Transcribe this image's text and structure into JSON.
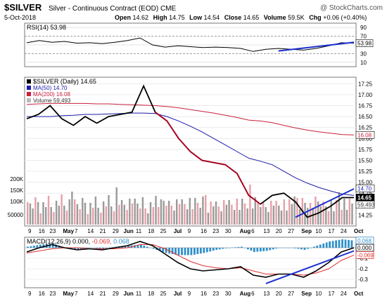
{
  "header": {
    "symbol": "$SILVER",
    "description": "Silver - Continuous Contract (EOD)",
    "exchange": "CME",
    "watermark": "@ StockCharts.com",
    "date": "5-Oct-2018",
    "open_label": "Open",
    "open": "14.62",
    "high_label": "High",
    "high": "14.75",
    "low_label": "Low",
    "low": "14.54",
    "close_label": "Close",
    "close": "14.65",
    "volume_label": "Volume",
    "volume": "59.5K",
    "chg_label": "Chg",
    "chg": "+0.06 (+0.40%)"
  },
  "colors": {
    "price": "#000000",
    "price_down": "#b00020",
    "ma50": "#1a1aa8",
    "ma200": "#c8203c",
    "volume_up": "#9a9a9a",
    "volume_down": "#e8a0a8",
    "macd": "#000000",
    "signal": "#e03030",
    "histogram": "#2f8fc8",
    "trendline": "#1a2fd0"
  },
  "chart_data": [
    {
      "type": "line",
      "title": "RSI(14) 53.98",
      "series": [
        {
          "name": "RSI(14)",
          "last": 53.98
        }
      ],
      "x": [
        "Apr 9",
        "Apr 16",
        "Apr 23",
        "Apr 30",
        "May 7",
        "May 14",
        "May 21",
        "May 29",
        "Jun 4",
        "Jun 11",
        "Jun 18",
        "Jun 25",
        "Jul 2",
        "Jul 9",
        "Jul 16",
        "Jul 23",
        "Jul 30",
        "Aug 6",
        "Aug 13",
        "Aug 20",
        "Aug 27",
        "Sep 4",
        "Sep 10",
        "Sep 17",
        "Sep 24",
        "Oct 1",
        "Oct 5"
      ],
      "values": [
        55,
        60,
        56,
        58,
        54,
        55,
        53,
        56,
        60,
        66,
        50,
        45,
        48,
        46,
        44,
        45,
        44,
        42,
        35,
        40,
        42,
        40,
        38,
        42,
        48,
        55,
        54
      ],
      "ylim": [
        0,
        100
      ],
      "yticks": [
        10,
        30,
        50,
        70,
        90
      ],
      "reference_lines": [
        30,
        70
      ]
    },
    {
      "type": "line",
      "title": "$SILVER (Daily) 14.65",
      "x": [
        "Apr 9",
        "Apr 16",
        "Apr 23",
        "Apr 30",
        "May 7",
        "May 14",
        "May 21",
        "May 29",
        "Jun 4",
        "Jun 11",
        "Jun 15",
        "Jun 18",
        "Jun 25",
        "Jul 2",
        "Jul 9",
        "Jul 16",
        "Jul 23",
        "Jul 30",
        "Aug 6",
        "Aug 13",
        "Aug 15",
        "Aug 20",
        "Aug 27",
        "Sep 4",
        "Sep 10",
        "Sep 17",
        "Sep 24",
        "Oct 1",
        "Oct 5"
      ],
      "series": [
        {
          "name": "$SILVER (Daily) 14.65",
          "values": [
            16.45,
            16.55,
            16.75,
            16.45,
            16.3,
            16.5,
            16.35,
            16.5,
            16.55,
            16.6,
            17.2,
            16.6,
            16.4,
            16.0,
            15.7,
            15.5,
            15.45,
            15.4,
            15.2,
            14.7,
            14.5,
            14.7,
            14.75,
            14.55,
            14.2,
            14.3,
            14.45,
            14.65,
            14.65
          ]
        },
        {
          "name": "MA(50) 14.70",
          "values": [
            16.5,
            16.5,
            16.5,
            16.52,
            16.53,
            16.55,
            16.55,
            16.56,
            16.57,
            16.58,
            16.58,
            16.57,
            16.5,
            16.4,
            16.28,
            16.15,
            16.0,
            15.85,
            15.7,
            15.55,
            15.48,
            15.4,
            15.25,
            15.1,
            14.98,
            14.88,
            14.8,
            14.73,
            14.7
          ]
        },
        {
          "name": "MA(200) 16.08",
          "values": [
            16.78,
            16.79,
            16.8,
            16.8,
            16.8,
            16.8,
            16.79,
            16.79,
            16.78,
            16.77,
            16.76,
            16.75,
            16.73,
            16.7,
            16.66,
            16.62,
            16.58,
            16.53,
            16.48,
            16.42,
            16.4,
            16.36,
            16.3,
            16.24,
            16.19,
            16.15,
            16.12,
            16.09,
            16.08
          ]
        }
      ],
      "volume": {
        "name": "Volume 59,493",
        "last": 59493,
        "yticks": [
          "50000",
          "100K",
          "150K",
          "200K"
        ]
      },
      "ylim": [
        14.0,
        17.4
      ],
      "yticks": [
        14.25,
        14.5,
        14.75,
        15.0,
        15.25,
        15.5,
        15.75,
        16.0,
        16.25,
        16.5,
        16.75,
        17.0,
        17.25
      ],
      "last_labels": [
        "14.65",
        "14.70",
        "16.08",
        "59,493"
      ]
    },
    {
      "type": "line",
      "title": "MACD(12,26,9) 0.000, -0.069, 0.068",
      "x": [
        "Apr 9",
        "Apr 16",
        "Apr 23",
        "Apr 30",
        "May 7",
        "May 14",
        "May 21",
        "May 29",
        "Jun 4",
        "Jun 11",
        "Jun 18",
        "Jun 25",
        "Jul 2",
        "Jul 9",
        "Jul 16",
        "Jul 23",
        "Jul 30",
        "Aug 6",
        "Aug 13",
        "Aug 20",
        "Aug 27",
        "Sep 4",
        "Sep 10",
        "Sep 17",
        "Sep 24",
        "Oct 1",
        "Oct 5"
      ],
      "series": [
        {
          "name": "MACD(12,26,9)",
          "values": [
            -0.04,
            0.0,
            0.03,
            0.0,
            -0.02,
            -0.01,
            -0.02,
            0.0,
            0.02,
            0.06,
            0.02,
            -0.06,
            -0.14,
            -0.2,
            -0.22,
            -0.21,
            -0.2,
            -0.18,
            -0.26,
            -0.28,
            -0.25,
            -0.25,
            -0.28,
            -0.22,
            -0.14,
            -0.04,
            0.0
          ]
        },
        {
          "name": "Signal",
          "values": [
            -0.05,
            -0.03,
            -0.01,
            0.0,
            0.0,
            -0.01,
            -0.01,
            -0.01,
            0.0,
            0.03,
            0.03,
            -0.01,
            -0.07,
            -0.13,
            -0.17,
            -0.19,
            -0.2,
            -0.19,
            -0.22,
            -0.25,
            -0.25,
            -0.25,
            -0.26,
            -0.24,
            -0.2,
            -0.12,
            -0.069
          ]
        },
        {
          "name": "Histogram",
          "values": [
            0.01,
            0.03,
            0.04,
            0.0,
            -0.02,
            0.0,
            -0.01,
            0.01,
            0.02,
            0.03,
            -0.01,
            -0.05,
            -0.07,
            -0.07,
            -0.05,
            -0.02,
            0.0,
            0.01,
            -0.04,
            -0.03,
            0.0,
            0.0,
            -0.02,
            0.02,
            0.06,
            0.08,
            0.068
          ]
        }
      ],
      "ylim": [
        -0.38,
        0.1
      ],
      "yticks": [
        -0.3,
        -0.2,
        -0.1
      ],
      "last_labels": [
        "0.068",
        "0.000",
        "-0.069"
      ]
    }
  ],
  "rsi_panel": {
    "title": "RSI(14) 53.98",
    "axis_labels": [
      "90",
      "70",
      "50",
      "30",
      "10"
    ],
    "last_label": "53.98"
  },
  "price_panel": {
    "legend_title": "$SILVER (Daily) 14.65",
    "legend_ma50": "MA(50) 14.70",
    "legend_ma200": "MA(200) 16.08",
    "legend_volume": "Volume 59,493",
    "axis_labels": [
      "17.25",
      "17.00",
      "16.75",
      "16.50",
      "16.25",
      "16.00",
      "15.75",
      "15.50",
      "15.25",
      "15.00",
      "14.75",
      "14.50",
      "14.25"
    ],
    "volume_axis_labels": [
      "200K",
      "150K",
      "100K",
      "50000"
    ],
    "last_price": "14.65",
    "last_ma50": "14.70",
    "last_ma200": "16.08",
    "last_volume": "59,493"
  },
  "macd_panel": {
    "title_prefix": "MACD(12,26,9)",
    "title_macd": "0.000,",
    "title_signal": "-0.069,",
    "title_hist": "0.068",
    "axis_labels": [
      "-0.1",
      "-0.2",
      "-0.3"
    ],
    "last_hist": "0.068",
    "last_macd": "0.000",
    "last_signal": "-0.069"
  },
  "x_axis": {
    "labels": [
      "9",
      "16",
      "23",
      "May",
      "7",
      "14",
      "21",
      "29",
      "Jun",
      "11",
      "18",
      "25",
      "Jul",
      "9",
      "16",
      "23",
      "30",
      "Aug",
      "6",
      "13",
      "20",
      "27",
      "Sep",
      "10",
      "17",
      "24",
      "Oct"
    ]
  }
}
